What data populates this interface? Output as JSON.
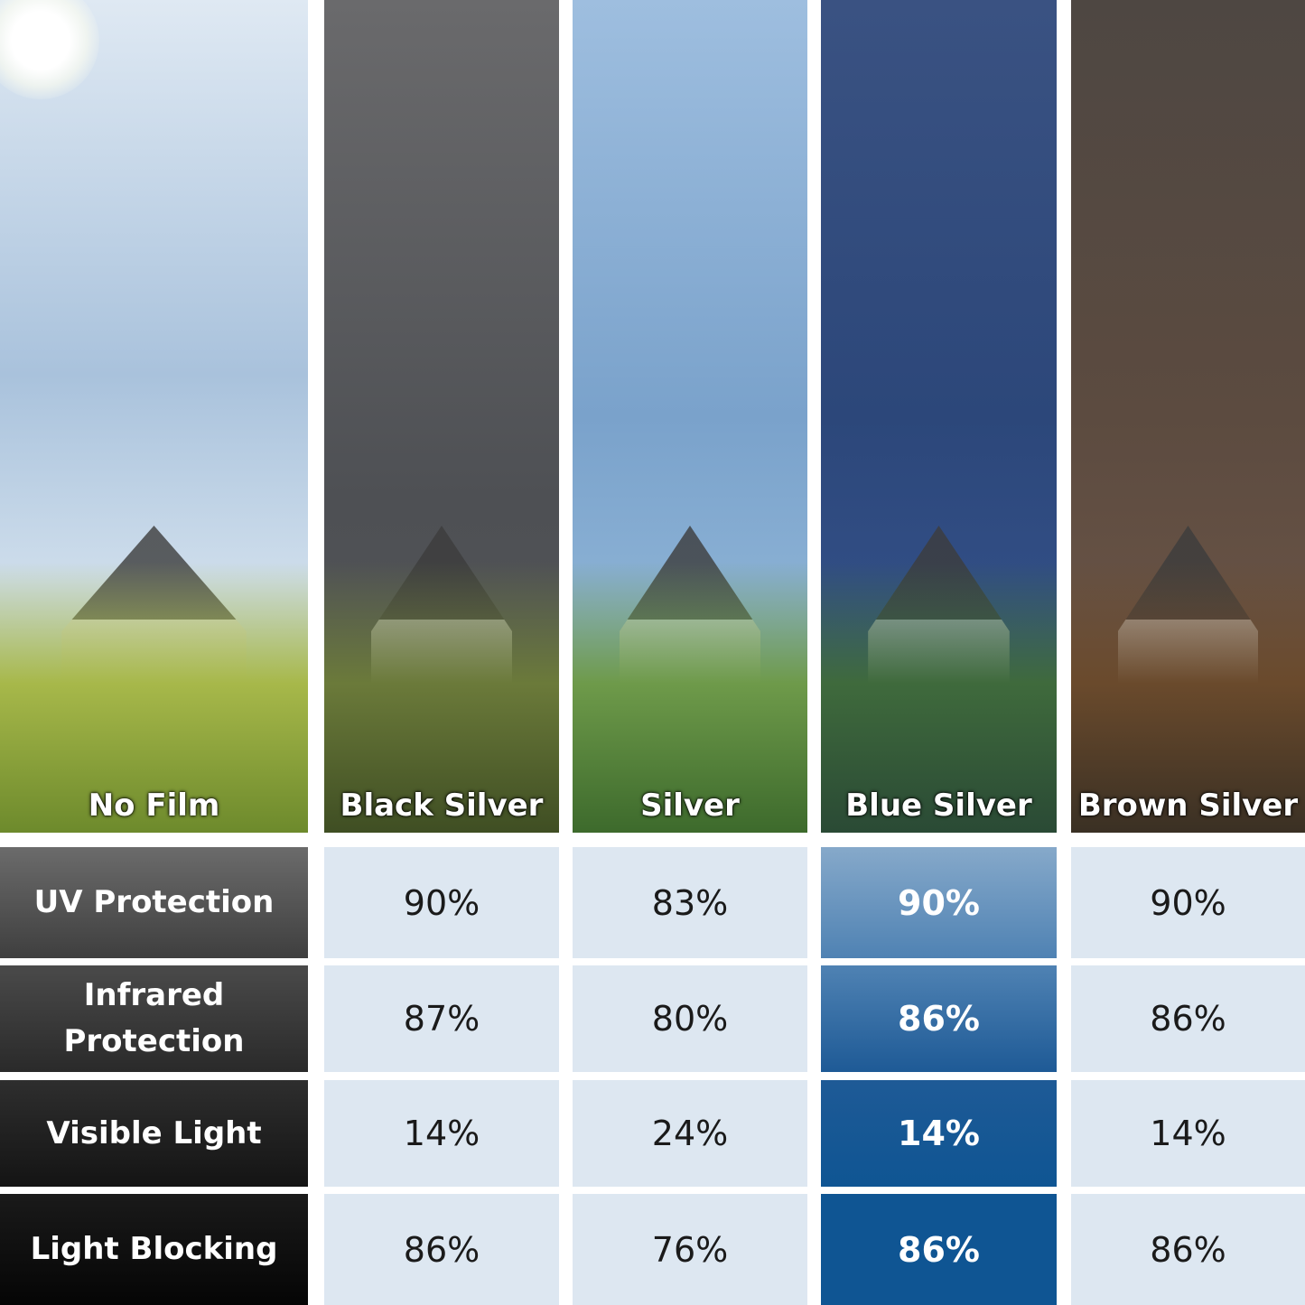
{
  "columns": [
    {
      "label": "No Film",
      "tint": "#c9d8e8"
    },
    {
      "label": "Black Silver",
      "tint": "#5e5e5e"
    },
    {
      "label": "Silver",
      "tint": "#8fb0d2"
    },
    {
      "label": "Blue Silver",
      "tint": "#2f4a7a"
    },
    {
      "label": "Brown Silver",
      "tint": "#5a4a40"
    }
  ],
  "rows": [
    {
      "label": "UV Protection",
      "values": [
        "90%",
        "83%",
        "90%",
        "90%"
      ]
    },
    {
      "label": "Infrared\nProtection",
      "values": [
        "87%",
        "80%",
        "86%",
        "86%"
      ]
    },
    {
      "label": "Visible Light",
      "values": [
        "14%",
        "24%",
        "14%",
        "14%"
      ]
    },
    {
      "label": "Light Blocking",
      "values": [
        "86%",
        "76%",
        "86%",
        "86%"
      ]
    }
  ],
  "colors": {
    "cell_bg": "#dde7f1",
    "highlight_blue": [
      "#86a9ca",
      "#4f82b3",
      "#1e5a96",
      "#0f5593"
    ]
  }
}
